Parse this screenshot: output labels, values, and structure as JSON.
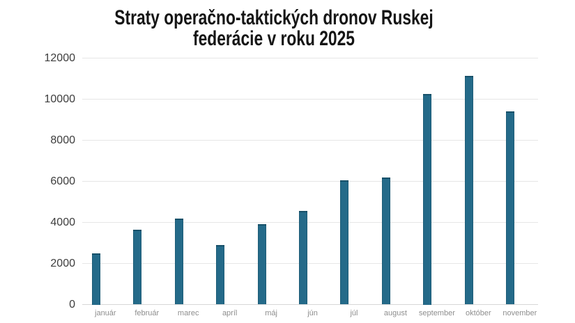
{
  "title": {
    "lines": [
      "Straty operačno-taktických dronov Ruskej",
      "federácie v roku 2025"
    ]
  },
  "chart_data": {
    "type": "bar",
    "title": "Straty operačno-taktických dronov Ruskej federácie v roku 2025",
    "categories": [
      "január",
      "február",
      "marec",
      "apríl",
      "máj",
      "jún",
      "júl",
      "august",
      "september",
      "október",
      "november"
    ],
    "values": [
      2500,
      3650,
      4200,
      2900,
      3900,
      4550,
      6050,
      6200,
      10250,
      11150,
      9400
    ],
    "xlabel": "",
    "ylabel": "",
    "ylim": [
      0,
      12000
    ],
    "yticks": [
      0,
      2000,
      4000,
      6000,
      8000,
      10000,
      12000
    ],
    "grid": true,
    "legend": "none",
    "bar_color": "#246a89",
    "gridline_color": "#e6e6e6",
    "axis_label_color": "#3d3d3d",
    "category_label_color": "#8e8e8e",
    "background_color": "#ffffff"
  }
}
